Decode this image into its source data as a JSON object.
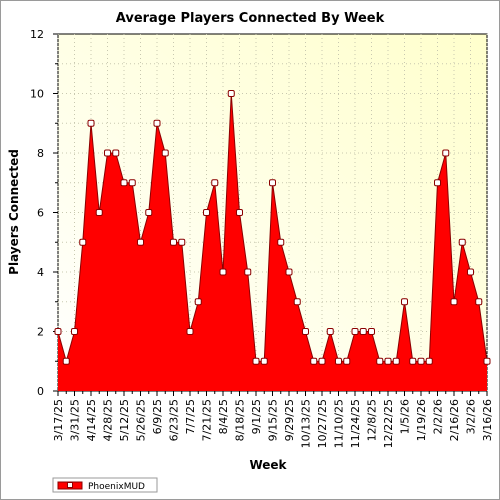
{
  "chart_data": {
    "type": "area",
    "title": "Average Players Connected By Week",
    "xlabel": "Week",
    "ylabel": "Players Connected",
    "ylim": [
      0,
      12
    ],
    "y_ticks": [
      0,
      2,
      4,
      6,
      8,
      10,
      12
    ],
    "grid": true,
    "legend_position": "bottom-left",
    "x_tick_labels": [
      "3/17/25",
      "3/31/25",
      "4/14/25",
      "4/28/25",
      "5/12/25",
      "5/26/25",
      "6/9/25",
      "6/23/25",
      "7/7/25",
      "7/21/25",
      "8/4/25",
      "8/18/25",
      "9/1/25",
      "9/15/25",
      "9/29/25",
      "10/13/25",
      "10/27/25",
      "11/10/25",
      "11/24/25",
      "12/8/25",
      "12/22/25",
      "1/5/26",
      "1/19/26",
      "2/2/26",
      "2/16/26",
      "3/2/26",
      "3/16/26"
    ],
    "series": [
      {
        "name": "PhoenixMUD",
        "color": "#ff0000",
        "values": [
          2,
          1,
          2,
          5,
          9,
          6,
          8,
          8,
          7,
          7,
          5,
          6,
          9,
          8,
          5,
          5,
          2,
          3,
          6,
          7,
          4,
          10,
          6,
          4,
          1,
          1,
          7,
          5,
          4,
          3,
          2,
          1,
          1,
          2,
          1,
          1,
          2,
          2,
          2,
          1,
          1,
          1,
          3,
          1,
          1,
          1,
          7,
          8,
          3,
          5,
          4,
          3,
          1
        ]
      }
    ]
  },
  "colors": {
    "plot_background": "#ffffe0",
    "fill": "#ff0000",
    "outline": "#8b0000",
    "marker_fill": "#ffffff"
  }
}
